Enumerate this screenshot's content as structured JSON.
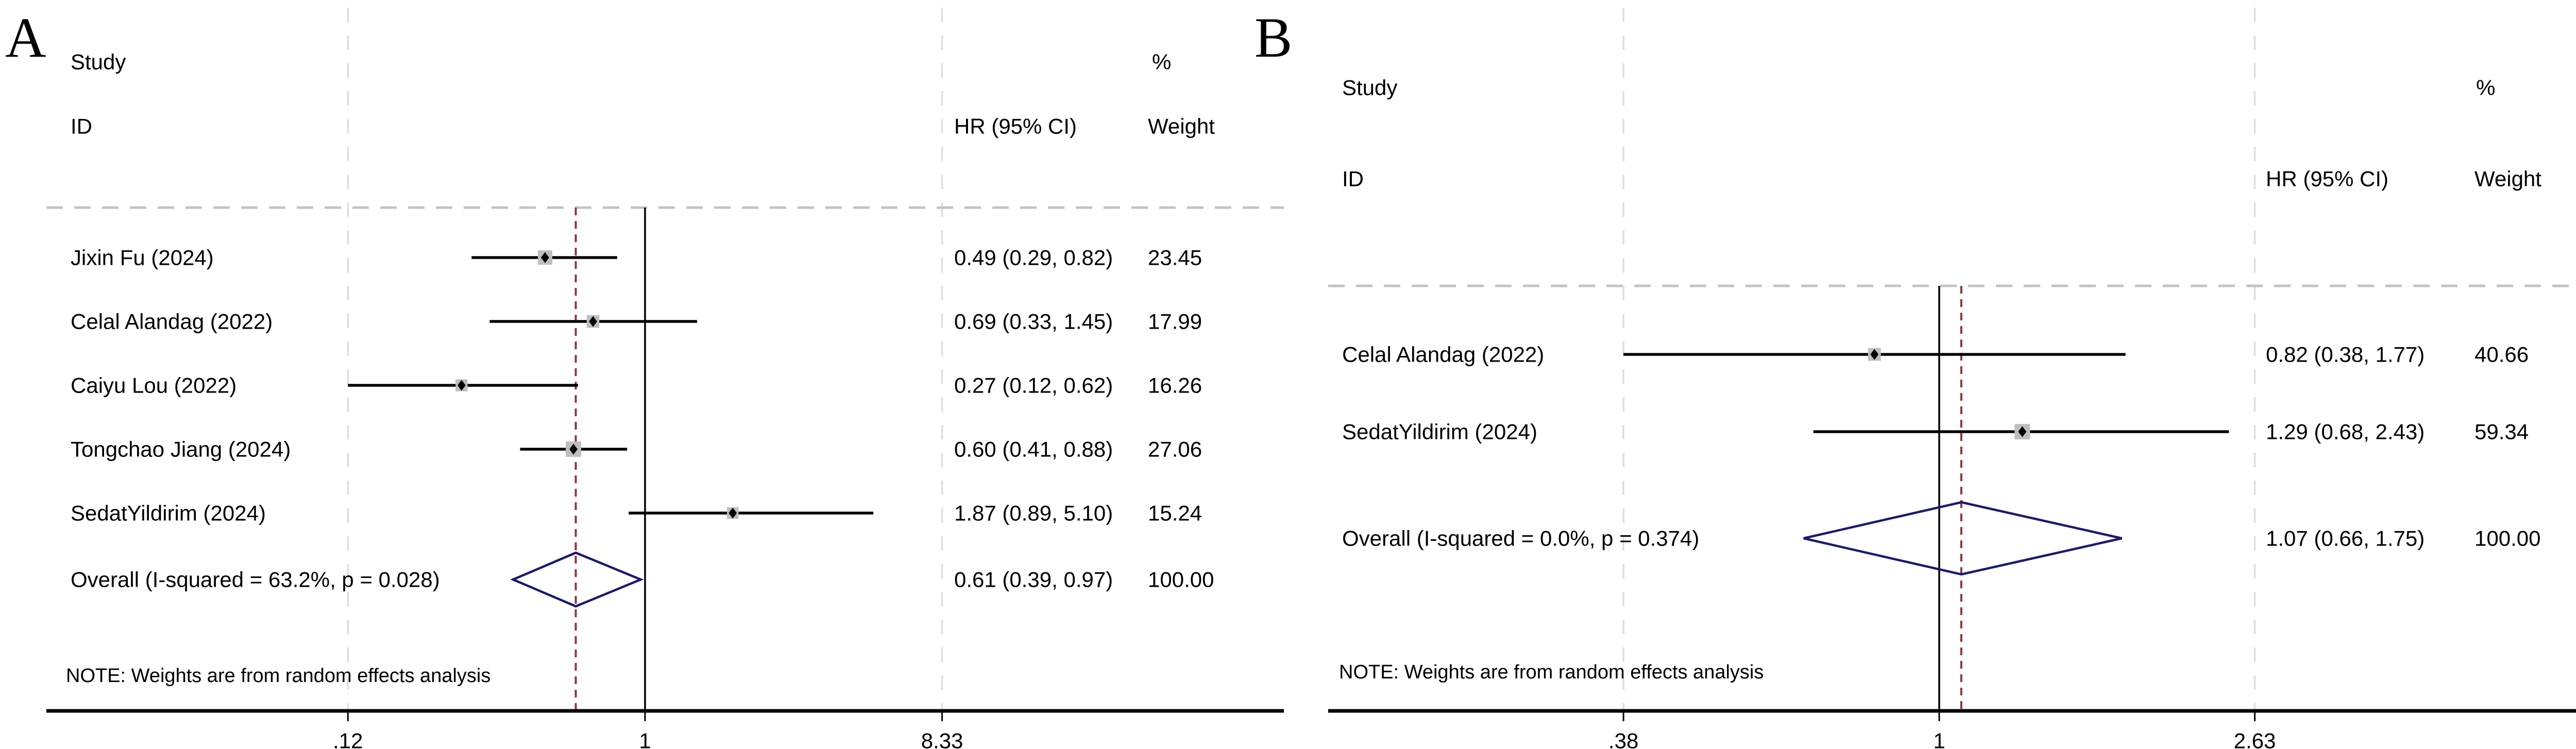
{
  "figure": {
    "kind": "forest-plot-meta-analysis",
    "background": "#ffffff"
  },
  "colors": {
    "overall_line_red": "#8f3539",
    "diamond_navy": "#1a1a70",
    "weight_box_gray": "#bebebe",
    "header_dash_gray": "#c3c3c3",
    "boundary_dash_gray": "#dedede",
    "text_black": "#000000"
  },
  "chart_data": [
    {
      "type": "forest",
      "title": "A",
      "xscale": "log",
      "columns": {
        "study1": "Study",
        "study2": "ID",
        "pct": "%",
        "hr": "HR (95% CI)",
        "weight": "Weight"
      },
      "note": "NOTE: Weights are from random effects analysis",
      "xticks": [
        0.12,
        1,
        8.33
      ],
      "xtick_labels": [
        ".12",
        "1",
        "8.33"
      ],
      "null_value": 1,
      "studies": [
        {
          "label": "Jixin Fu (2024)",
          "hr": 0.49,
          "lo": 0.29,
          "hi": 0.82,
          "hr_ci_text": "0.49 (0.29, 0.82)",
          "weight": 23.45,
          "weight_text": "23.45"
        },
        {
          "label": "Celal Alandag (2022)",
          "hr": 0.69,
          "lo": 0.33,
          "hi": 1.45,
          "hr_ci_text": "0.69 (0.33, 1.45)",
          "weight": 17.99,
          "weight_text": "17.99"
        },
        {
          "label": "Caiyu Lou (2022)",
          "hr": 0.27,
          "lo": 0.12,
          "hi": 0.62,
          "hr_ci_text": "0.27 (0.12, 0.62)",
          "weight": 16.26,
          "weight_text": "16.26"
        },
        {
          "label": "Tongchao Jiang (2024)",
          "hr": 0.6,
          "lo": 0.41,
          "hi": 0.88,
          "hr_ci_text": "0.60 (0.41, 0.88)",
          "weight": 27.06,
          "weight_text": "27.06"
        },
        {
          "label": "SedatYildirim (2024)",
          "hr": 1.87,
          "lo": 0.89,
          "hi": 5.1,
          "hr_ci_text": "1.87 (0.89, 5.10)",
          "weight": 15.24,
          "weight_text": "15.24"
        }
      ],
      "overall": {
        "label": "Overall  (I-squared = 63.2%, p = 0.028)",
        "hr": 0.61,
        "lo": 0.39,
        "hi": 0.97,
        "hr_ci_text": "0.61 (0.39, 0.97)",
        "weight": 100.0,
        "weight_text": "100.00"
      }
    },
    {
      "type": "forest",
      "title": "B",
      "xscale": "log",
      "columns": {
        "study1": "Study",
        "study2": "ID",
        "pct": "%",
        "hr": "HR (95% CI)",
        "weight": "Weight"
      },
      "note": "NOTE: Weights are from random effects analysis",
      "xticks": [
        0.38,
        1,
        2.63
      ],
      "xtick_labels": [
        ".38",
        "1",
        "2.63"
      ],
      "null_value": 1,
      "studies": [
        {
          "label": "Celal Alandag (2022)",
          "hr": 0.82,
          "lo": 0.38,
          "hi": 1.77,
          "hr_ci_text": "0.82 (0.38, 1.77)",
          "weight": 40.66,
          "weight_text": "40.66"
        },
        {
          "label": "SedatYildirim (2024)",
          "hr": 1.29,
          "lo": 0.68,
          "hi": 2.43,
          "hr_ci_text": "1.29 (0.68, 2.43)",
          "weight": 59.34,
          "weight_text": "59.34"
        }
      ],
      "overall": {
        "label": "Overall  (I-squared = 0.0%, p = 0.374)",
        "hr": 1.07,
        "lo": 0.66,
        "hi": 1.75,
        "hr_ci_text": "1.07 (0.66, 1.75)",
        "weight": 100.0,
        "weight_text": "100.00"
      }
    }
  ]
}
